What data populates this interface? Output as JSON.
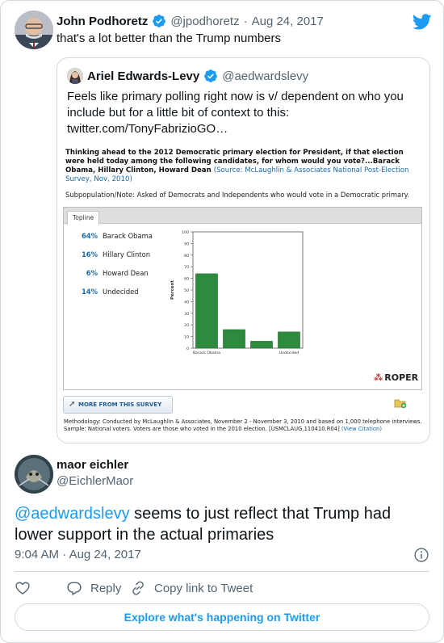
{
  "quoting_tweet": {
    "author_name": "John Podhoretz",
    "handle": "@jpodhoretz",
    "separator": "·",
    "date": "Aug 24, 2017",
    "text": "that's a lot better than the Trump numbers",
    "icons": [
      "verified-badge-icon",
      "twitter-bird-icon"
    ]
  },
  "quoted_tweet": {
    "author_name": "Ariel Edwards-Levy",
    "handle": "@aedwardslevy",
    "text_lines": [
      "Feels like primary polling right now is v/ dependent on who you",
      "include but for a little bit of context to this:",
      "twitter.com/TonyFabrizioGO…"
    ]
  },
  "survey_image": {
    "question": "Thinking ahead to the 2012 Democratic primary election for President, if that election were held today among the following candidates, for whom would you vote?...Barack Obama, Hillary Clinton, Howard Dean",
    "source": "(Source: McLaughlin & Associates National Post-Election Survey, Nov, 2010)",
    "subpopulation": "Subpopulation/Note: Asked of Democrats and Independents who would vote in a Democratic primary.",
    "tab_label": "Topline",
    "legend": [
      {
        "pct": "64%",
        "label": "Barack Obama"
      },
      {
        "pct": "16%",
        "label": "Hillary Clinton"
      },
      {
        "pct": "6%",
        "label": "Howard Dean"
      },
      {
        "pct": "14%",
        "label": "Undecided"
      }
    ],
    "logo_text": "ROPER",
    "more_button": "MORE FROM THIS SURVEY",
    "methodology": "Methodology: Conducted by McLaughlin & Associates, November 2 - November 3, 2010 and based on 1,000 telephone interviews. Sample: National voters. Voters are those who voted in the 2010 election. [USMCLAUG.110410.R04]",
    "citation_link": "(View Citation)"
  },
  "chart_data": {
    "type": "bar",
    "categories": [
      "Barack Obama",
      "Hillary Clinton",
      "Howard Dean",
      "Undecided"
    ],
    "values": [
      64,
      16,
      6,
      14
    ],
    "x_tick_labels": [
      "Barack Obama",
      "",
      "",
      "Undecided"
    ],
    "ylabel": "Percent",
    "ylim": [
      0,
      100
    ],
    "yticks": [
      "0",
      "10",
      "20",
      "30",
      "40",
      "50",
      "60",
      "70",
      "80",
      "90",
      "100"
    ],
    "bar_color": "#2e8b3e",
    "grid": false
  },
  "reply": {
    "author_name": "maor eichler",
    "handle": "@EichlerMaor",
    "mention": "@aedwardslevy",
    "text_line1_rest": " seems to just reflect that Trump had",
    "text_line2": "lower support in the actual primaries",
    "time": "9:04 AM",
    "separator": "·",
    "date": "Aug 24, 2017"
  },
  "actions": {
    "reply": "Reply",
    "copy_link": "Copy link to Tweet",
    "explore": "Explore what's happening on Twitter"
  },
  "colors": {
    "accent": "#1d9bf0",
    "text": "#0f1419",
    "muted": "#536471",
    "border": "#cfd9de"
  }
}
